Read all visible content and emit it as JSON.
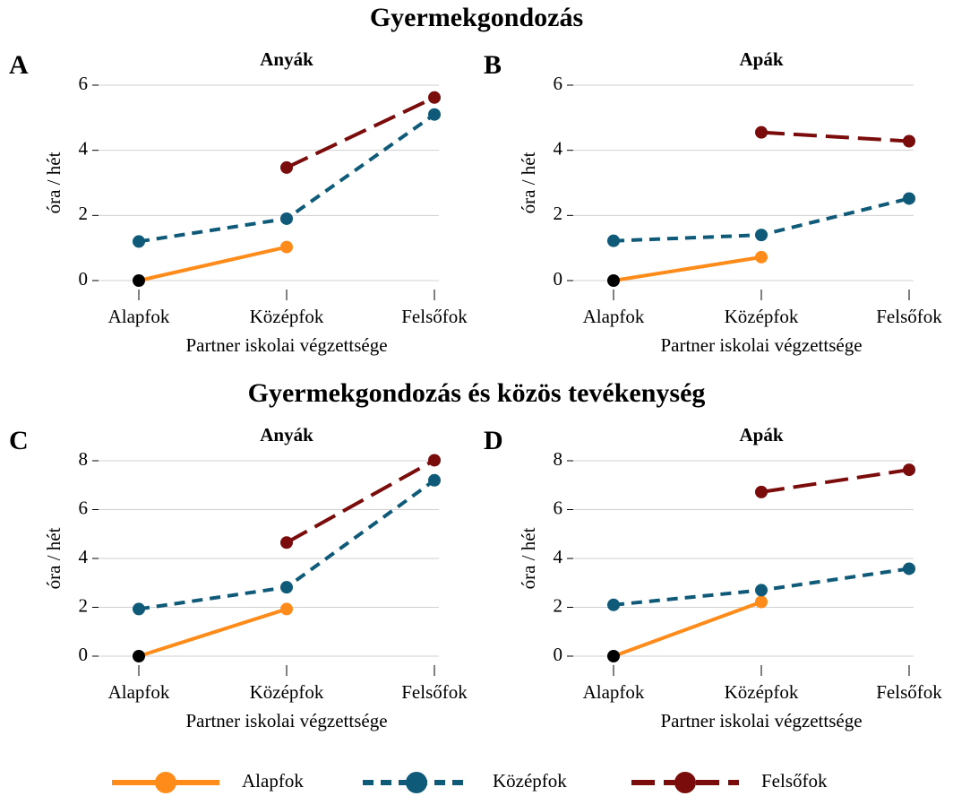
{
  "section_titles": [
    "Gyermekgondozás",
    "Gyermekgondozás és közös tevékenység"
  ],
  "chart_data": [
    {
      "type": "line",
      "panel_label": "A",
      "title": "Anyák",
      "ylabel": "óra / hét",
      "xlabel": "Partner iskolai végzettsége",
      "categories": [
        "Alapfok",
        "Középfok",
        "Felsőfok"
      ],
      "ylim": [
        0,
        6
      ],
      "yticks": [
        0,
        2,
        4,
        6
      ],
      "grid": true,
      "series": [
        {
          "name": "Alapfok",
          "color": "#ff8c1a",
          "dash": "none",
          "first_point_color": "#000000",
          "values": [
            0,
            1.03,
            null
          ]
        },
        {
          "name": "Középfok",
          "color": "#0e5a78",
          "dash": "12,8",
          "values": [
            1.2,
            1.9,
            5.1
          ]
        },
        {
          "name": "Felsőfok",
          "color": "#7b0c0c",
          "dash": "26,10",
          "values": [
            null,
            3.47,
            5.62
          ]
        }
      ]
    },
    {
      "type": "line",
      "panel_label": "B",
      "title": "Apák",
      "ylabel": "óra / hét",
      "xlabel": "Partner iskolai végzettsége",
      "categories": [
        "Alapfok",
        "Középfok",
        "Felsőfok"
      ],
      "ylim": [
        0,
        6
      ],
      "yticks": [
        0,
        2,
        4,
        6
      ],
      "grid": true,
      "series": [
        {
          "name": "Alapfok",
          "color": "#ff8c1a",
          "dash": "none",
          "first_point_color": "#000000",
          "values": [
            0,
            0.72,
            null
          ]
        },
        {
          "name": "Középfok",
          "color": "#0e5a78",
          "dash": "12,8",
          "values": [
            1.22,
            1.4,
            2.52
          ]
        },
        {
          "name": "Felsőfok",
          "color": "#7b0c0c",
          "dash": "26,10",
          "values": [
            null,
            4.55,
            4.28
          ]
        }
      ]
    },
    {
      "type": "line",
      "panel_label": "C",
      "title": "Anyák",
      "ylabel": "óra / hét",
      "xlabel": "Partner iskolai végzettsége",
      "categories": [
        "Alapfok",
        "Középfok",
        "Felsőfok"
      ],
      "ylim": [
        0,
        8
      ],
      "yticks": [
        0,
        2,
        4,
        6,
        8
      ],
      "grid": true,
      "series": [
        {
          "name": "Alapfok",
          "color": "#ff8c1a",
          "dash": "none",
          "first_point_color": "#000000",
          "values": [
            0,
            1.93,
            null
          ]
        },
        {
          "name": "Középfok",
          "color": "#0e5a78",
          "dash": "12,8",
          "values": [
            1.93,
            2.82,
            7.2
          ]
        },
        {
          "name": "Felsőfok",
          "color": "#7b0c0c",
          "dash": "26,10",
          "values": [
            null,
            4.65,
            8.02
          ]
        }
      ]
    },
    {
      "type": "line",
      "panel_label": "D",
      "title": "Apák",
      "ylabel": "óra / hét",
      "xlabel": "Partner iskolai végzettsége",
      "categories": [
        "Alapfok",
        "Középfok",
        "Felsőfok"
      ],
      "ylim": [
        0,
        8
      ],
      "yticks": [
        0,
        2,
        4,
        6,
        8
      ],
      "grid": true,
      "series": [
        {
          "name": "Alapfok",
          "color": "#ff8c1a",
          "dash": "none",
          "first_point_color": "#000000",
          "values": [
            0,
            2.22,
            null
          ]
        },
        {
          "name": "Középfok",
          "color": "#0e5a78",
          "dash": "12,8",
          "values": [
            2.1,
            2.7,
            3.58
          ]
        },
        {
          "name": "Felsőfok",
          "color": "#7b0c0c",
          "dash": "26,10",
          "values": [
            null,
            6.72,
            7.63
          ]
        }
      ]
    }
  ]
}
